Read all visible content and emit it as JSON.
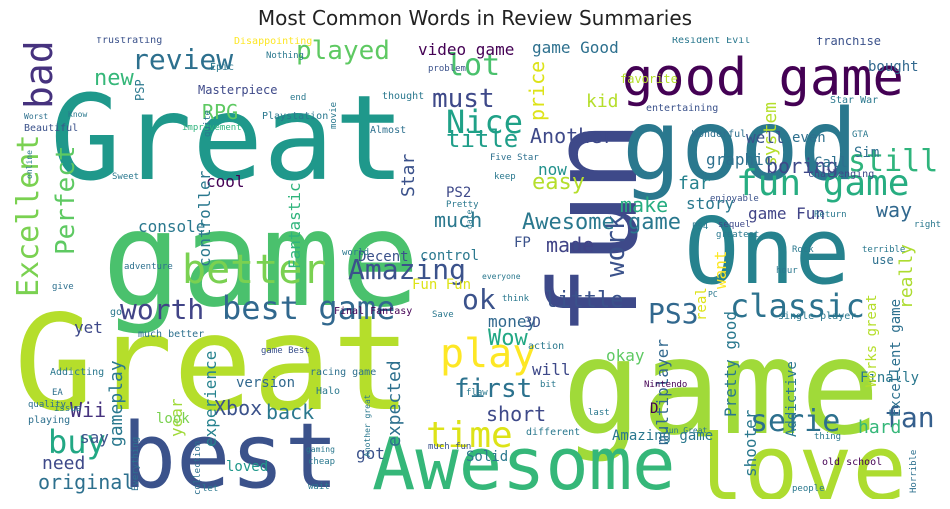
{
  "chart_data": {
    "type": "wordcloud",
    "title": "Most Common Words in Review Summaries",
    "xlabel": "",
    "ylabel": "",
    "grid": false,
    "background": "#ffffff",
    "colormap": "viridis",
    "words": [
      {
        "text": "Great",
        "weight": 100,
        "color": "#b5de2b"
      },
      {
        "text": "game",
        "weight": 98,
        "color": "#a0da39"
      },
      {
        "text": "game",
        "weight": 97,
        "color": "#4ac16d"
      },
      {
        "text": "Great",
        "weight": 96,
        "color": "#1f988b"
      },
      {
        "text": "fun",
        "weight": 90,
        "color": "#3e4989"
      },
      {
        "text": "good",
        "weight": 82,
        "color": "#2a788e"
      },
      {
        "text": "best",
        "weight": 70,
        "color": "#3b528b"
      },
      {
        "text": "love",
        "weight": 70,
        "color": "#addc30"
      },
      {
        "text": "One",
        "weight": 68,
        "color": "#26828e"
      },
      {
        "text": "Awesome",
        "weight": 58,
        "color": "#35b779"
      },
      {
        "text": "good game",
        "weight": 46,
        "color": "#440154"
      },
      {
        "text": "bad",
        "weight": 34,
        "color": "#46327e"
      },
      {
        "text": "review",
        "weight": 32,
        "color": "#2d708e"
      },
      {
        "text": "played",
        "weight": 30,
        "color": "#5ec962"
      },
      {
        "text": "better",
        "weight": 36,
        "color": "#7ad151"
      },
      {
        "text": "fun game",
        "weight": 36,
        "color": "#27ad81"
      },
      {
        "text": "Amazing",
        "weight": 28,
        "color": "#3b528b"
      },
      {
        "text": "best game",
        "weight": 32,
        "color": "#31688e"
      },
      {
        "text": "play",
        "weight": 36,
        "color": "#fde725"
      },
      {
        "text": "time",
        "weight": 32,
        "color": "#dde318"
      },
      {
        "text": "classic",
        "weight": 30,
        "color": "#2c728e"
      },
      {
        "text": "serie",
        "weight": 28,
        "color": "#2d708e"
      },
      {
        "text": "fan",
        "weight": 26,
        "color": "#355f8d"
      },
      {
        "text": "buy",
        "weight": 26,
        "color": "#22a884"
      },
      {
        "text": "worth",
        "weight": 26,
        "color": "#414487"
      },
      {
        "text": "Nice",
        "weight": 26,
        "color": "#1fa187"
      },
      {
        "text": "still",
        "weight": 26,
        "color": "#2fb47c"
      },
      {
        "text": "lot",
        "weight": 24,
        "color": "#4ac16d"
      },
      {
        "text": "must",
        "weight": 22,
        "color": "#3e4989"
      },
      {
        "text": "Excellent",
        "weight": 24,
        "color": "#7ad151"
      },
      {
        "text": "Perfect",
        "weight": 22,
        "color": "#5ec962"
      },
      {
        "text": "work",
        "weight": 22,
        "color": "#3b528b"
      },
      {
        "text": "first",
        "weight": 20,
        "color": "#2c728e"
      },
      {
        "text": "PS3",
        "weight": 22,
        "color": "#31688e"
      },
      {
        "text": "title",
        "weight": 20,
        "color": "#1f9e89"
      },
      {
        "text": "Another",
        "weight": 18,
        "color": "#3e4989"
      },
      {
        "text": "new",
        "weight": 18,
        "color": "#35b779"
      },
      {
        "text": "RPG",
        "weight": 17,
        "color": "#5ec962"
      },
      {
        "text": "kid",
        "weight": 16,
        "color": "#b5de2b"
      },
      {
        "text": "price",
        "weight": 18,
        "color": "#dde318"
      },
      {
        "text": "system",
        "weight": 16,
        "color": "#b5de2b"
      },
      {
        "text": "boring",
        "weight": 16,
        "color": "#3e4989"
      },
      {
        "text": "Awesome game",
        "weight": 16,
        "color": "#2a788e"
      },
      {
        "text": "ok",
        "weight": 20,
        "color": "#3b528b"
      },
      {
        "text": "little",
        "weight": 18,
        "color": "#3b528b"
      },
      {
        "text": "Wow",
        "weight": 16,
        "color": "#22a884"
      },
      {
        "text": "gameplay",
        "weight": 16,
        "color": "#2a788e"
      },
      {
        "text": "Wii",
        "weight": 16,
        "color": "#46327e"
      },
      {
        "text": "need",
        "weight": 15,
        "color": "#3e4989"
      },
      {
        "text": "original",
        "weight": 16,
        "color": "#2d708e"
      },
      {
        "text": "Xbox",
        "weight": 16,
        "color": "#3b528b"
      },
      {
        "text": "back",
        "weight": 16,
        "color": "#2a788e"
      },
      {
        "text": "short",
        "weight": 16,
        "color": "#3e4989"
      },
      {
        "text": "easy",
        "weight": 16,
        "color": "#b5de2b"
      },
      {
        "text": "much",
        "weight": 15,
        "color": "#2a788e"
      },
      {
        "text": "made",
        "weight": 15,
        "color": "#414487"
      },
      {
        "text": "make",
        "weight": 15,
        "color": "#27ad81"
      },
      {
        "text": "way",
        "weight": 15,
        "color": "#31688e"
      },
      {
        "text": "hard",
        "weight": 14,
        "color": "#35b779"
      },
      {
        "text": "really",
        "weight": 15,
        "color": "#addc30"
      },
      {
        "text": "Finally",
        "weight": 12,
        "color": "#2a788e"
      },
      {
        "text": "cool",
        "weight": 13,
        "color": "#440154"
      },
      {
        "text": "Star",
        "weight": 14,
        "color": "#3b528b"
      },
      {
        "text": "now",
        "weight": 13,
        "color": "#21918c"
      },
      {
        "text": "year",
        "weight": 13,
        "color": "#a0da39"
      },
      {
        "text": "experience",
        "weight": 12,
        "color": "#26828e"
      },
      {
        "text": "expected",
        "weight": 13,
        "color": "#2d708e"
      },
      {
        "text": "money",
        "weight": 12,
        "color": "#31688e"
      },
      {
        "text": "console",
        "weight": 12,
        "color": "#2a788e"
      },
      {
        "text": "controller",
        "weight": 12,
        "color": "#2a788e"
      },
      {
        "text": "Fantastic",
        "weight": 12,
        "color": "#2fb47c"
      },
      {
        "text": "graphic",
        "weight": 12,
        "color": "#2d708e"
      },
      {
        "text": "far",
        "weight": 13,
        "color": "#26828e"
      },
      {
        "text": "story",
        "weight": 12,
        "color": "#2a788e"
      },
      {
        "text": "game Fun",
        "weight": 12,
        "color": "#414487"
      },
      {
        "text": "okay",
        "weight": 12,
        "color": "#5ec962"
      },
      {
        "text": "will",
        "weight": 12,
        "color": "#3e4989"
      },
      {
        "text": "got",
        "weight": 12,
        "color": "#3b528b"
      },
      {
        "text": "loved",
        "weight": 11,
        "color": "#1f988b"
      },
      {
        "text": "say",
        "weight": 11,
        "color": "#3b528b"
      },
      {
        "text": "yet",
        "weight": 11,
        "color": "#3e4989"
      },
      {
        "text": "look",
        "weight": 11,
        "color": "#7ad151"
      },
      {
        "text": "version",
        "weight": 10,
        "color": "#31688e"
      },
      {
        "text": "Addictive",
        "weight": 10,
        "color": "#2a788e"
      },
      {
        "text": "Pretty good",
        "weight": 11,
        "color": "#2a788e"
      },
      {
        "text": "multiplayer",
        "weight": 11,
        "color": "#31688e"
      },
      {
        "text": "shooter",
        "weight": 11,
        "color": "#2a788e"
      },
      {
        "text": "Works great",
        "weight": 10,
        "color": "#b5de2b"
      },
      {
        "text": "Excellent game",
        "weight": 10,
        "color": "#2d708e"
      },
      {
        "text": "even",
        "weight": 11,
        "color": "#2d708e"
      },
      {
        "text": "well",
        "weight": 11,
        "color": "#3b528b"
      },
      {
        "text": "Call",
        "weight": 10,
        "color": "#2d708e"
      },
      {
        "text": "Sim",
        "weight": 10,
        "color": "#2d708e"
      },
      {
        "text": "bought",
        "weight": 10,
        "color": "#31688e"
      },
      {
        "text": "game Good",
        "weight": 12,
        "color": "#2d708e"
      },
      {
        "text": "video game",
        "weight": 11,
        "color": "#440154"
      },
      {
        "text": "favorite",
        "weight": 10,
        "color": "#b5de2b"
      },
      {
        "text": "want",
        "weight": 10,
        "color": "#fde725"
      },
      {
        "text": "real",
        "weight": 10,
        "color": "#dde318"
      },
      {
        "text": "Decent",
        "weight": 10,
        "color": "#3b528b"
      },
      {
        "text": "control",
        "weight": 10,
        "color": "#2a788e"
      },
      {
        "text": "PS2",
        "weight": 10,
        "color": "#3e4989"
      },
      {
        "text": "Amazing game",
        "weight": 9,
        "color": "#2a788e"
      },
      {
        "text": "Fun Fun",
        "weight": 10,
        "color": "#dde318"
      },
      {
        "text": "Masterpiece",
        "weight": 8,
        "color": "#3e4989"
      },
      {
        "text": "Playstation",
        "weight": 7,
        "color": "#2a788e"
      },
      {
        "text": "Disappointing",
        "weight": 7,
        "color": "#fde725"
      },
      {
        "text": "Resident Evil",
        "weight": 7,
        "color": "#2a788e"
      },
      {
        "text": "franchise",
        "weight": 7,
        "color": "#3b528b"
      },
      {
        "text": "Star War",
        "weight": 7,
        "color": "#2a788e"
      },
      {
        "text": "Five Star",
        "weight": 7,
        "color": "#2d708e"
      },
      {
        "text": "Final Fantasy",
        "weight": 6,
        "color": "#440154"
      },
      {
        "text": "Nintendo",
        "weight": 6,
        "color": "#440154"
      },
      {
        "text": "racing game",
        "weight": 6,
        "color": "#2d708e"
      },
      {
        "text": "single player",
        "weight": 6,
        "color": "#2a788e"
      },
      {
        "text": "old school",
        "weight": 6,
        "color": "#440154"
      },
      {
        "text": "much better",
        "weight": 6,
        "color": "#2d708e"
      },
      {
        "text": "much fun",
        "weight": 6,
        "color": "#3b528b"
      },
      {
        "text": "game Best",
        "weight": 6,
        "color": "#3b528b"
      },
      {
        "text": "Almost",
        "weight": 6,
        "color": "#2d708e"
      },
      {
        "text": "Wonderful",
        "weight": 6,
        "color": "#2d708e"
      },
      {
        "text": "frustrating",
        "weight": 6,
        "color": "#3b528b"
      },
      {
        "text": "improvement",
        "weight": 6,
        "color": "#2fb47c"
      },
      {
        "text": "entertaining",
        "weight": 6,
        "color": "#3b528b"
      },
      {
        "text": "enjoyable",
        "weight": 6,
        "color": "#3b528b"
      },
      {
        "text": "challenging",
        "weight": 6,
        "color": "#3e4989"
      },
      {
        "text": "Beautiful",
        "weight": 6,
        "color": "#3b528b"
      },
      {
        "text": "Addicting",
        "weight": 6,
        "color": "#2a788e"
      },
      {
        "text": "adventure",
        "weight": 6,
        "color": "#2d708e"
      },
      {
        "text": "different",
        "weight": 6,
        "color": "#2a788e"
      },
      {
        "text": "collection",
        "weight": 6,
        "color": "#2d708e"
      },
      {
        "text": "Everything",
        "weight": 5,
        "color": "#2d708e"
      },
      {
        "text": "Horrible",
        "weight": 5,
        "color": "#2d708e"
      },
      {
        "text": "people",
        "weight": 6,
        "color": "#2a788e"
      },
      {
        "text": "quality",
        "weight": 6,
        "color": "#2d708e"
      },
      {
        "text": "playing",
        "weight": 6,
        "color": "#2d708e"
      },
      {
        "text": "problem",
        "weight": 6,
        "color": "#3b528b"
      },
      {
        "text": "thought",
        "weight": 6,
        "color": "#2a788e"
      },
      {
        "text": "sequel",
        "weight": 6,
        "color": "#3e4989"
      },
      {
        "text": "terrible",
        "weight": 6,
        "color": "#2a788e"
      },
      {
        "text": "greatest",
        "weight": 6,
        "color": "#2a788e"
      },
      {
        "text": "Nothing",
        "weight": 6,
        "color": "#2a788e"
      },
      {
        "text": "Epic",
        "weight": 7,
        "color": "#2a788e"
      },
      {
        "text": "PSP",
        "weight": 8,
        "color": "#2a788e"
      },
      {
        "text": "GTA",
        "weight": 6,
        "color": "#2a788e"
      },
      {
        "text": "Halo",
        "weight": 6,
        "color": "#2a788e"
      },
      {
        "text": "EA",
        "weight": 6,
        "color": "#2d708e"
      },
      {
        "text": "issue",
        "weight": 6,
        "color": "#2a788e"
      },
      {
        "text": "world",
        "weight": 6,
        "color": "#2a788e"
      },
      {
        "text": "action",
        "weight": 6,
        "color": "#2a788e"
      },
      {
        "text": "Solid",
        "weight": 8,
        "color": "#2a788e"
      },
      {
        "text": "Save",
        "weight": 6,
        "color": "#2a788e"
      },
      {
        "text": "flaw",
        "weight": 6,
        "color": "#2a788e"
      },
      {
        "text": "hour",
        "weight": 6,
        "color": "#2a788e"
      },
      {
        "text": "use",
        "weight": 8,
        "color": "#2d708e"
      },
      {
        "text": "right",
        "weight": 6,
        "color": "#2a788e"
      },
      {
        "text": "Rock",
        "weight": 6,
        "color": "#2a788e"
      },
      {
        "text": "thing",
        "weight": 6,
        "color": "#2a788e"
      },
      {
        "text": "cheap",
        "weight": 6,
        "color": "#2a788e"
      },
      {
        "text": "wait",
        "weight": 6,
        "color": "#2a788e"
      },
      {
        "text": "let",
        "weight": 6,
        "color": "#2a788e"
      },
      {
        "text": "give",
        "weight": 6,
        "color": "#2d708e"
      },
      {
        "text": "go",
        "weight": 6,
        "color": "#2a788e"
      },
      {
        "text": "keep",
        "weight": 6,
        "color": "#2a788e"
      },
      {
        "text": "end",
        "weight": 6,
        "color": "#2a788e"
      },
      {
        "text": "movie",
        "weight": 6,
        "color": "#2a788e"
      },
      {
        "text": "bit",
        "weight": 6,
        "color": "#2a788e"
      },
      {
        "text": "last",
        "weight": 6,
        "color": "#2a788e"
      },
      {
        "text": "Sweet",
        "weight": 6,
        "color": "#2a788e"
      },
      {
        "text": "Pretty",
        "weight": 6,
        "color": "#2a788e"
      },
      {
        "text": "everyone",
        "weight": 6,
        "color": "#2a788e"
      },
      {
        "text": "Return",
        "weight": 6,
        "color": "#2a788e"
      },
      {
        "text": "PS4",
        "weight": 6,
        "color": "#2a788e"
      },
      {
        "text": "FP",
        "weight": 10,
        "color": "#3b528b"
      },
      {
        "text": "3D",
        "weight": 12,
        "color": "#3b528b"
      },
      {
        "text": "D",
        "weight": 10,
        "color": "#440154"
      },
      {
        "text": "fun Great",
        "weight": 6,
        "color": "#2a788e"
      },
      {
        "text": "Another great",
        "weight": 6,
        "color": "#2a788e"
      },
      {
        "text": "gaming",
        "weight": 6,
        "color": "#2a788e"
      },
      {
        "text": "Know",
        "weight": 6,
        "color": "#2a788e"
      },
      {
        "text": "Worst",
        "weight": 6,
        "color": "#2d708e"
      },
      {
        "text": "online",
        "weight": 6,
        "color": "#2a788e"
      },
      {
        "text": "think",
        "weight": 6,
        "color": "#2a788e"
      },
      {
        "text": "date",
        "weight": 6,
        "color": "#2a788e"
      },
      {
        "text": "quite",
        "weight": 6,
        "color": "#2a788e"
      },
      {
        "text": "PC",
        "weight": 6,
        "color": "#2a788e"
      }
    ]
  }
}
